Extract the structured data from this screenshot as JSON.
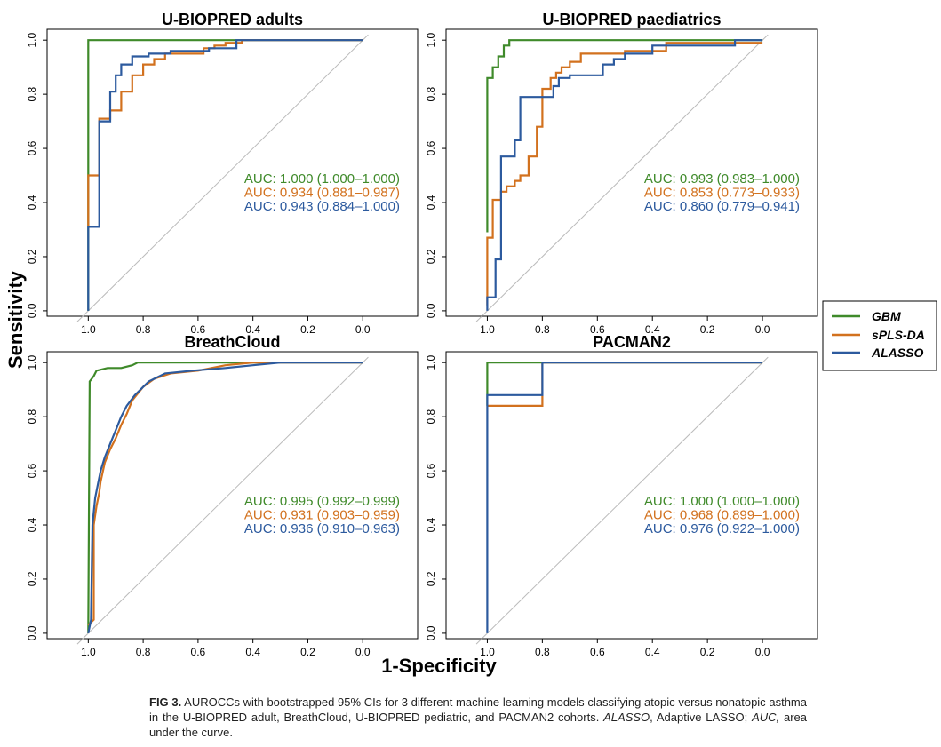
{
  "figure": {
    "x_label": "1-Specificity",
    "y_label": "Sensitivity",
    "legend": [
      {
        "name": "GBM",
        "color": "#3f8a2a"
      },
      {
        "name": "sPLS-DA",
        "color": "#d2711e"
      },
      {
        "name": "ALASSO",
        "color": "#2c5a9e"
      }
    ]
  },
  "chart_data": [
    {
      "type": "line",
      "title": "U-BIOPRED adults",
      "xlim": [
        1.15,
        -0.2
      ],
      "ylim": [
        -0.02,
        1.04
      ],
      "xticks": [
        "1.0",
        "0.8",
        "0.6",
        "0.4",
        "0.2",
        "0.0"
      ],
      "yticks": [
        "0.0",
        "0.2",
        "0.4",
        "0.6",
        "0.8",
        "1.0"
      ],
      "series": [
        {
          "name": "GBM",
          "color": "#3f8a2a",
          "auc": "AUC: 1.000 (1.000–1.000)",
          "points": [
            [
              1,
              0
            ],
            [
              1,
              1
            ],
            [
              0,
              1
            ]
          ]
        },
        {
          "name": "sPLS-DA",
          "color": "#d2711e",
          "auc": "AUC: 0.934 (0.881–0.987)",
          "points": [
            [
              1,
              0.31
            ],
            [
              1,
              0.5
            ],
            [
              0.96,
              0.5
            ],
            [
              0.96,
              0.71
            ],
            [
              0.92,
              0.71
            ],
            [
              0.92,
              0.74
            ],
            [
              0.88,
              0.74
            ],
            [
              0.88,
              0.81
            ],
            [
              0.84,
              0.81
            ],
            [
              0.84,
              0.87
            ],
            [
              0.8,
              0.87
            ],
            [
              0.8,
              0.91
            ],
            [
              0.76,
              0.91
            ],
            [
              0.76,
              0.93
            ],
            [
              0.72,
              0.93
            ],
            [
              0.72,
              0.95
            ],
            [
              0.58,
              0.95
            ],
            [
              0.58,
              0.97
            ],
            [
              0.54,
              0.97
            ],
            [
              0.54,
              0.98
            ],
            [
              0.5,
              0.98
            ],
            [
              0.5,
              0.99
            ],
            [
              0.44,
              0.99
            ],
            [
              0.44,
              1
            ],
            [
              0,
              1
            ]
          ]
        },
        {
          "name": "ALASSO",
          "color": "#2c5a9e",
          "auc": "AUC: 0.943 (0.884–1.000)",
          "points": [
            [
              1,
              0
            ],
            [
              1,
              0.31
            ],
            [
              0.96,
              0.31
            ],
            [
              0.96,
              0.7
            ],
            [
              0.92,
              0.7
            ],
            [
              0.92,
              0.81
            ],
            [
              0.9,
              0.81
            ],
            [
              0.9,
              0.87
            ],
            [
              0.88,
              0.87
            ],
            [
              0.88,
              0.91
            ],
            [
              0.84,
              0.91
            ],
            [
              0.84,
              0.94
            ],
            [
              0.78,
              0.94
            ],
            [
              0.78,
              0.95
            ],
            [
              0.7,
              0.95
            ],
            [
              0.7,
              0.96
            ],
            [
              0.56,
              0.96
            ],
            [
              0.56,
              0.97
            ],
            [
              0.46,
              0.97
            ],
            [
              0.46,
              1
            ],
            [
              0,
              1
            ]
          ]
        }
      ]
    },
    {
      "type": "line",
      "title": "U-BIOPRED paediatrics",
      "xlim": [
        1.15,
        -0.2
      ],
      "ylim": [
        -0.02,
        1.04
      ],
      "xticks": [
        "1.0",
        "0.8",
        "0.6",
        "0.4",
        "0.2",
        "0.0"
      ],
      "yticks": [
        "0.0",
        "0.2",
        "0.4",
        "0.6",
        "0.8",
        "1.0"
      ],
      "series": [
        {
          "name": "GBM",
          "color": "#3f8a2a",
          "auc": "AUC: 0.993 (0.983–1.000)",
          "points": [
            [
              1,
              0.29
            ],
            [
              1,
              0.86
            ],
            [
              0.98,
              0.86
            ],
            [
              0.98,
              0.9
            ],
            [
              0.96,
              0.9
            ],
            [
              0.96,
              0.94
            ],
            [
              0.94,
              0.94
            ],
            [
              0.94,
              0.98
            ],
            [
              0.92,
              0.98
            ],
            [
              0.92,
              1
            ],
            [
              0,
              1
            ]
          ]
        },
        {
          "name": "sPLS-DA",
          "color": "#d2711e",
          "auc": "AUC: 0.853 (0.773–0.933)",
          "points": [
            [
              1,
              0.02
            ],
            [
              1,
              0.27
            ],
            [
              0.98,
              0.27
            ],
            [
              0.98,
              0.41
            ],
            [
              0.95,
              0.41
            ],
            [
              0.95,
              0.44
            ],
            [
              0.93,
              0.44
            ],
            [
              0.93,
              0.46
            ],
            [
              0.9,
              0.46
            ],
            [
              0.9,
              0.48
            ],
            [
              0.88,
              0.48
            ],
            [
              0.88,
              0.5
            ],
            [
              0.85,
              0.5
            ],
            [
              0.85,
              0.57
            ],
            [
              0.82,
              0.57
            ],
            [
              0.82,
              0.68
            ],
            [
              0.8,
              0.68
            ],
            [
              0.8,
              0.82
            ],
            [
              0.77,
              0.82
            ],
            [
              0.77,
              0.86
            ],
            [
              0.75,
              0.86
            ],
            [
              0.75,
              0.88
            ],
            [
              0.73,
              0.88
            ],
            [
              0.73,
              0.9
            ],
            [
              0.7,
              0.9
            ],
            [
              0.7,
              0.92
            ],
            [
              0.66,
              0.92
            ],
            [
              0.66,
              0.95
            ],
            [
              0.5,
              0.95
            ],
            [
              0.5,
              0.96
            ],
            [
              0.35,
              0.96
            ],
            [
              0.35,
              0.99
            ],
            [
              0,
              0.99
            ]
          ]
        },
        {
          "name": "ALASSO",
          "color": "#2c5a9e",
          "auc": "AUC: 0.860 (0.779–0.941)",
          "points": [
            [
              1,
              0
            ],
            [
              1,
              0.05
            ],
            [
              0.97,
              0.05
            ],
            [
              0.97,
              0.19
            ],
            [
              0.95,
              0.19
            ],
            [
              0.95,
              0.57
            ],
            [
              0.9,
              0.57
            ],
            [
              0.9,
              0.63
            ],
            [
              0.88,
              0.63
            ],
            [
              0.88,
              0.79
            ],
            [
              0.76,
              0.79
            ],
            [
              0.76,
              0.83
            ],
            [
              0.74,
              0.83
            ],
            [
              0.74,
              0.86
            ],
            [
              0.7,
              0.86
            ],
            [
              0.7,
              0.87
            ],
            [
              0.58,
              0.87
            ],
            [
              0.58,
              0.91
            ],
            [
              0.54,
              0.91
            ],
            [
              0.54,
              0.93
            ],
            [
              0.5,
              0.93
            ],
            [
              0.5,
              0.95
            ],
            [
              0.4,
              0.95
            ],
            [
              0.4,
              0.98
            ],
            [
              0.1,
              0.98
            ],
            [
              0.1,
              1
            ],
            [
              0,
              1
            ]
          ]
        }
      ]
    },
    {
      "type": "line",
      "title": "BreathCloud",
      "xlim": [
        1.15,
        -0.2
      ],
      "ylim": [
        -0.02,
        1.04
      ],
      "xticks": [
        "1.0",
        "0.8",
        "0.6",
        "0.4",
        "0.2",
        "0.0"
      ],
      "yticks": [
        "0.0",
        "0.2",
        "0.4",
        "0.6",
        "0.8",
        "1.0"
      ],
      "series": [
        {
          "name": "GBM",
          "color": "#3f8a2a",
          "auc": "AUC: 0.995 (0.992–0.999)",
          "points": [
            [
              1,
              0
            ],
            [
              0.995,
              0.93
            ],
            [
              0.98,
              0.95
            ],
            [
              0.97,
              0.97
            ],
            [
              0.93,
              0.98
            ],
            [
              0.88,
              0.98
            ],
            [
              0.84,
              0.99
            ],
            [
              0.82,
              1
            ],
            [
              0,
              1
            ]
          ]
        },
        {
          "name": "sPLS-DA",
          "color": "#d2711e",
          "auc": "AUC: 0.931 (0.903–0.959)",
          "points": [
            [
              1,
              0.03
            ],
            [
              0.98,
              0.05
            ],
            [
              0.98,
              0.4
            ],
            [
              0.97,
              0.47
            ],
            [
              0.96,
              0.52
            ],
            [
              0.955,
              0.56
            ],
            [
              0.94,
              0.63
            ],
            [
              0.92,
              0.68
            ],
            [
              0.9,
              0.72
            ],
            [
              0.88,
              0.77
            ],
            [
              0.86,
              0.81
            ],
            [
              0.84,
              0.86
            ],
            [
              0.8,
              0.91
            ],
            [
              0.76,
              0.94
            ],
            [
              0.7,
              0.96
            ],
            [
              0.6,
              0.97
            ],
            [
              0.5,
              0.99
            ],
            [
              0.4,
              1
            ],
            [
              0,
              1
            ]
          ]
        },
        {
          "name": "ALASSO",
          "color": "#2c5a9e",
          "auc": "AUC: 0.936 (0.910–0.963)",
          "points": [
            [
              1,
              0
            ],
            [
              0.99,
              0.05
            ],
            [
              0.985,
              0.4
            ],
            [
              0.975,
              0.5
            ],
            [
              0.965,
              0.55
            ],
            [
              0.955,
              0.6
            ],
            [
              0.94,
              0.65
            ],
            [
              0.92,
              0.7
            ],
            [
              0.9,
              0.75
            ],
            [
              0.88,
              0.8
            ],
            [
              0.86,
              0.84
            ],
            [
              0.83,
              0.88
            ],
            [
              0.78,
              0.93
            ],
            [
              0.72,
              0.96
            ],
            [
              0.62,
              0.97
            ],
            [
              0.5,
              0.98
            ],
            [
              0.4,
              0.99
            ],
            [
              0.3,
              1
            ],
            [
              0,
              1
            ]
          ]
        }
      ]
    },
    {
      "type": "line",
      "title": "PACMAN2",
      "xlim": [
        1.15,
        -0.2
      ],
      "ylim": [
        -0.02,
        1.04
      ],
      "xticks": [
        "1.0",
        "0.8",
        "0.6",
        "0.4",
        "0.2",
        "0.0"
      ],
      "yticks": [
        "0.0",
        "0.2",
        "0.4",
        "0.6",
        "0.8",
        "1.0"
      ],
      "series": [
        {
          "name": "GBM",
          "color": "#3f8a2a",
          "auc": "AUC: 1.000 (1.000–1.000)",
          "points": [
            [
              1,
              0.84
            ],
            [
              1,
              1
            ],
            [
              0,
              1
            ]
          ]
        },
        {
          "name": "sPLS-DA",
          "color": "#d2711e",
          "auc": "AUC: 0.968 (0.899–1.000)",
          "points": [
            [
              1,
              0.84
            ],
            [
              0.8,
              0.84
            ],
            [
              0.8,
              1
            ],
            [
              0,
              1
            ]
          ]
        },
        {
          "name": "ALASSO",
          "color": "#2c5a9e",
          "auc": "AUC: 0.976 (0.922–1.000)",
          "points": [
            [
              1,
              0
            ],
            [
              1,
              0.88
            ],
            [
              0.8,
              0.88
            ],
            [
              0.8,
              1
            ],
            [
              0,
              1
            ]
          ]
        }
      ]
    }
  ],
  "caption": {
    "fig_label": "FIG 3.",
    "text_1": " AUROCCs with bootstrapped 95% CIs for 3 different machine learning models classifying atopic versus nonatopic asthma in the U-BIOPRED adult, BreathCloud, U-BIOPRED pediatric, and PACMAN2 cohorts. ",
    "abbr_1": "ALASSO",
    "text_2": ", Adaptive LASSO; ",
    "abbr_2": "AUC,",
    "text_3": " area under the curve."
  }
}
